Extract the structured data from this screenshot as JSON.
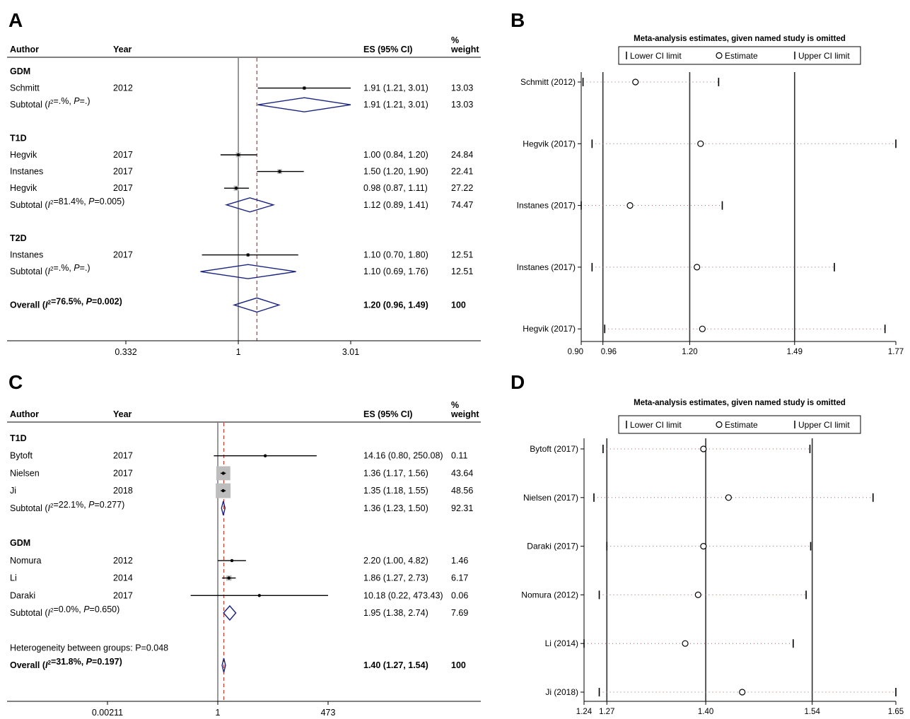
{
  "chart_data": [
    {
      "panel": "A",
      "type": "forest",
      "columns": {
        "author": "Author",
        "year": "Year",
        "es": "ES (95% CI)",
        "weight_line1": "%",
        "weight_line2": "weight"
      },
      "x_scale": "log",
      "x_ticks": [
        {
          "value": 0.332,
          "label": "0.332"
        },
        {
          "value": 1,
          "label": "1"
        },
        {
          "value": 3.01,
          "label": "3.01"
        }
      ],
      "overall_line": 1.2,
      "rows": [
        {
          "kind": "group",
          "label": "GDM"
        },
        {
          "kind": "study",
          "author": "Schmitt",
          "year": "2012",
          "es": 1.91,
          "lo": 1.21,
          "hi": 3.01,
          "es_text": "1.91 (1.21, 3.01)",
          "weight": "13.03"
        },
        {
          "kind": "subtotal",
          "label": "Subtotal (I²=.%, P=.)",
          "es": 1.91,
          "lo": 1.21,
          "hi": 3.01,
          "es_text": "1.91 (1.21, 3.01)",
          "weight": "13.03"
        },
        {
          "kind": "blank"
        },
        {
          "kind": "group",
          "label": "T1D"
        },
        {
          "kind": "study",
          "author": "Hegvik",
          "year": "2017",
          "es": 1.0,
          "lo": 0.84,
          "hi": 1.2,
          "es_text": "1.00 (0.84, 1.20)",
          "weight": "24.84"
        },
        {
          "kind": "study",
          "author": "Instanes",
          "year": "2017",
          "es": 1.5,
          "lo": 1.2,
          "hi": 1.9,
          "es_text": "1.50 (1.20, 1.90)",
          "weight": "22.41"
        },
        {
          "kind": "study",
          "author": "Hegvik",
          "year": "2017",
          "es": 0.98,
          "lo": 0.87,
          "hi": 1.11,
          "es_text": "0.98 (0.87, 1.11)",
          "weight": "27.22"
        },
        {
          "kind": "subtotal",
          "label": "Subtotal (I²=81.4%, P=0.005)",
          "es": 1.12,
          "lo": 0.89,
          "hi": 1.41,
          "es_text": "1.12 (0.89, 1.41)",
          "weight": "74.47"
        },
        {
          "kind": "blank"
        },
        {
          "kind": "group",
          "label": "T2D"
        },
        {
          "kind": "study",
          "author": "Instanes",
          "year": "2017",
          "es": 1.1,
          "lo": 0.7,
          "hi": 1.8,
          "es_text": "1.10 (0.70, 1.80)",
          "weight": "12.51"
        },
        {
          "kind": "subtotal",
          "label": "Subtotal (I²=.%, P=.)",
          "es": 1.1,
          "lo": 0.69,
          "hi": 1.76,
          "es_text": "1.10 (0.69, 1.76)",
          "weight": "12.51"
        },
        {
          "kind": "blank"
        },
        {
          "kind": "overall",
          "label": "Overall (I²=76.5%, P=0.002)",
          "es": 1.2,
          "lo": 0.96,
          "hi": 1.49,
          "es_text": "1.20 (0.96, 1.49)",
          "weight": "100"
        }
      ]
    },
    {
      "panel": "B",
      "type": "sensitivity",
      "title": "Meta-analysis estimates, given named study is omitted",
      "legend": [
        "Lower CI limit",
        "Estimate",
        "Upper CI limit"
      ],
      "xlim": [
        0.9,
        1.77
      ],
      "x_ticks": [
        {
          "value": 0.9,
          "label": "0.90"
        },
        {
          "value": 0.96,
          "label": "0.96"
        },
        {
          "value": 1.2,
          "label": "1.20"
        },
        {
          "value": 1.49,
          "label": "1.49"
        },
        {
          "value": 1.77,
          "label": "1.77"
        }
      ],
      "reference_lines": [
        0.96,
        1.2,
        1.49
      ],
      "studies": [
        {
          "label": "Schmitt (2012)",
          "lower": 0.905,
          "estimate": 1.05,
          "upper": 1.28
        },
        {
          "label": "Hegvik (2017)",
          "lower": 0.93,
          "estimate": 1.23,
          "upper": 1.77
        },
        {
          "label": "Instanes (2017)",
          "lower": 0.9,
          "estimate": 1.035,
          "upper": 1.29
        },
        {
          "label": "Instanes (2017)",
          "lower": 0.93,
          "estimate": 1.22,
          "upper": 1.6
        },
        {
          "label": "Hegvik (2017)",
          "lower": 0.965,
          "estimate": 1.235,
          "upper": 1.74
        }
      ]
    },
    {
      "panel": "C",
      "type": "forest",
      "columns": {
        "author": "Author",
        "year": "Year",
        "es": "ES (95% CI)",
        "weight_line1": "%",
        "weight_line2": "weight"
      },
      "x_scale": "log",
      "x_ticks": [
        {
          "value": 0.00211,
          "label": "0.00211"
        },
        {
          "value": 1,
          "label": "1"
        },
        {
          "value": 473,
          "label": "473"
        }
      ],
      "overall_line": 1.4,
      "rows": [
        {
          "kind": "group",
          "label": "T1D"
        },
        {
          "kind": "study",
          "author": "Bytoft",
          "year": "2017",
          "es": 14.16,
          "lo": 0.8,
          "hi": 250.08,
          "es_text": "14.16 (0.80, 250.08)",
          "weight": "0.11"
        },
        {
          "kind": "study",
          "author": "Nielsen",
          "year": "2017",
          "es": 1.36,
          "lo": 1.17,
          "hi": 1.56,
          "es_text": "1.36 (1.17, 1.56)",
          "weight": "43.64"
        },
        {
          "kind": "study",
          "author": "Ji",
          "year": "2018",
          "es": 1.35,
          "lo": 1.18,
          "hi": 1.55,
          "es_text": "1.35 (1.18, 1.55)",
          "weight": "48.56"
        },
        {
          "kind": "subtotal",
          "label": "Subtotal (I²=22.1%, P=0.277)",
          "es": 1.36,
          "lo": 1.23,
          "hi": 1.5,
          "es_text": "1.36 (1.23, 1.50)",
          "weight": "92.31"
        },
        {
          "kind": "blank"
        },
        {
          "kind": "group",
          "label": "GDM"
        },
        {
          "kind": "study",
          "author": "Nomura",
          "year": "2012",
          "es": 2.2,
          "lo": 1.0,
          "hi": 4.82,
          "es_text": "2.20 (1.00, 4.82)",
          "weight": "1.46"
        },
        {
          "kind": "study",
          "author": "Li",
          "year": "2014",
          "es": 1.86,
          "lo": 1.27,
          "hi": 2.73,
          "es_text": "1.86 (1.27, 2.73)",
          "weight": "6.17"
        },
        {
          "kind": "study",
          "author": "Daraki",
          "year": "2017",
          "es": 10.18,
          "lo": 0.22,
          "hi": 473.43,
          "es_text": "10.18 (0.22, 473.43)",
          "weight": "0.06"
        },
        {
          "kind": "subtotal",
          "label": "Subtotal (I²=0.0%, P=0.650)",
          "es": 1.95,
          "lo": 1.38,
          "hi": 2.74,
          "es_text": "1.95 (1.38, 2.74)",
          "weight": "7.69"
        },
        {
          "kind": "blank"
        },
        {
          "kind": "note",
          "label": "Heterogeneity between groups: P=0.048"
        },
        {
          "kind": "overall",
          "label": "Overall (I²=31.8%, P=0.197)",
          "es": 1.4,
          "lo": 1.27,
          "hi": 1.54,
          "es_text": "1.40 (1.27, 1.54)",
          "weight": "100"
        }
      ]
    },
    {
      "panel": "D",
      "type": "sensitivity",
      "title": "Meta-analysis estimates, given named study is omitted",
      "legend": [
        "Lower CI limit",
        "Estimate",
        "Upper CI limit"
      ],
      "xlim": [
        1.24,
        1.65
      ],
      "x_ticks": [
        {
          "value": 1.24,
          "label": "1.24"
        },
        {
          "value": 1.27,
          "label": "1.27"
        },
        {
          "value": 1.4,
          "label": "1.40"
        },
        {
          "value": 1.54,
          "label": "1.54"
        },
        {
          "value": 1.65,
          "label": "1.65"
        }
      ],
      "reference_lines": [
        1.27,
        1.4,
        1.54
      ],
      "studies": [
        {
          "label": "Bytoft (2017)",
          "lower": 1.265,
          "estimate": 1.397,
          "upper": 1.537
        },
        {
          "label": "Nielsen (2017)",
          "lower": 1.253,
          "estimate": 1.43,
          "upper": 1.62
        },
        {
          "label": "Daraki (2017)",
          "lower": 1.27,
          "estimate": 1.397,
          "upper": 1.538
        },
        {
          "label": "Nomura (2012)",
          "lower": 1.26,
          "estimate": 1.39,
          "upper": 1.532
        },
        {
          "label": "Li (2014)",
          "lower": 1.24,
          "estimate": 1.373,
          "upper": 1.515
        },
        {
          "label": "Ji (2018)",
          "lower": 1.26,
          "estimate": 1.448,
          "upper": 1.65
        }
      ]
    }
  ]
}
